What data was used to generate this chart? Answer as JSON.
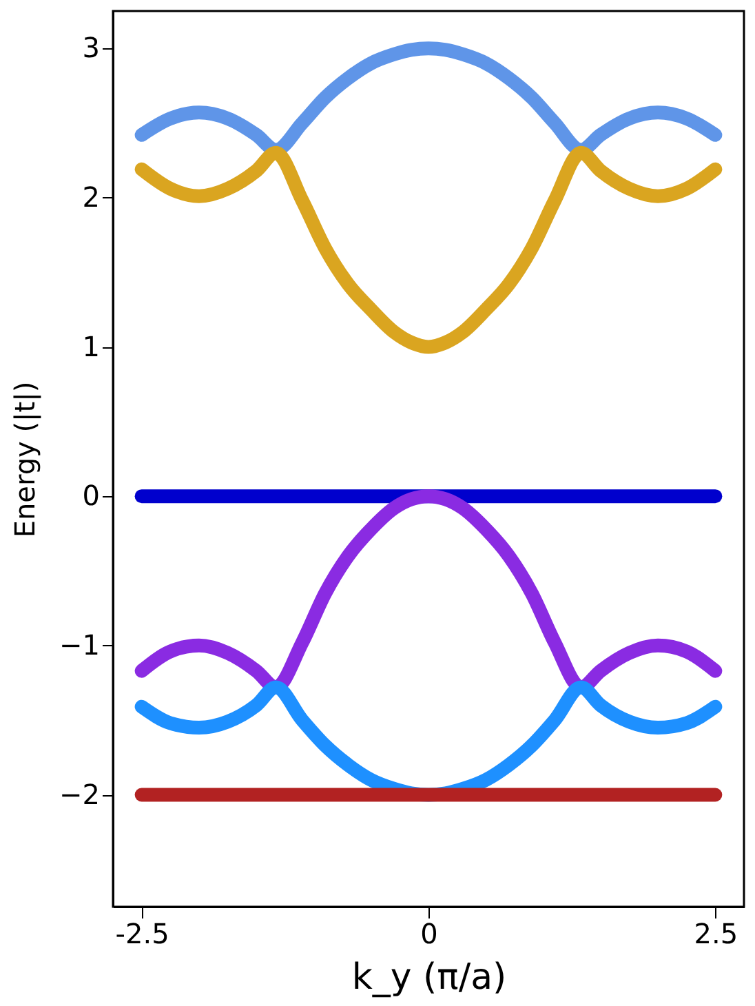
{
  "chart_data": {
    "type": "line",
    "xlabel": "k_y (π/a)",
    "ylabel": "Energy (|t|)",
    "xlim": [
      -2.75,
      2.75
    ],
    "ylim": [
      -2.75,
      3.25
    ],
    "xticks": [
      {
        "value": -2.5,
        "label": "-2.5"
      },
      0,
      {
        "value": 2.5,
        "label": "2.5"
      }
    ],
    "yticks": [
      -2,
      -1,
      0,
      1,
      2,
      3
    ],
    "grid": false,
    "legend": false,
    "marker": "none",
    "line_style": "solid",
    "x": [
      -2.5,
      -2.25,
      -2,
      -1.75,
      -1.5,
      -1.33,
      -1.1,
      -0.9,
      -0.7,
      -0.5,
      -0.3,
      -0.15,
      0,
      0.15,
      0.3,
      0.5,
      0.7,
      0.9,
      1.1,
      1.33,
      1.5,
      1.75,
      2,
      2.25,
      2.5
    ],
    "series": [
      {
        "color": "#5f95e8",
        "values": [
          2.42,
          2.53,
          2.57,
          2.53,
          2.42,
          2.32,
          2.5,
          2.67,
          2.8,
          2.9,
          2.96,
          2.99,
          3.0,
          2.99,
          2.96,
          2.9,
          2.8,
          2.67,
          2.5,
          2.32,
          2.42,
          2.53,
          2.57,
          2.53,
          2.42
        ]
      },
      {
        "color": "#daa520",
        "values": [
          2.19,
          2.06,
          2.01,
          2.06,
          2.18,
          2.3,
          1.98,
          1.66,
          1.42,
          1.25,
          1.1,
          1.03,
          1.0,
          1.03,
          1.1,
          1.25,
          1.42,
          1.66,
          1.98,
          2.3,
          2.18,
          2.06,
          2.01,
          2.06,
          2.19
        ]
      },
      {
        "color": "#0000cd",
        "values": [
          0,
          0,
          0,
          0,
          0,
          0,
          0,
          0,
          0,
          0,
          0,
          0,
          0,
          0,
          0,
          0,
          0,
          0,
          0,
          0,
          0,
          0,
          0,
          0,
          0
        ]
      },
      {
        "color": "#8a2be2",
        "values": [
          -1.17,
          -1.04,
          -1.0,
          -1.05,
          -1.17,
          -1.28,
          -0.98,
          -0.65,
          -0.4,
          -0.22,
          -0.08,
          -0.02,
          0,
          -0.02,
          -0.08,
          -0.22,
          -0.4,
          -0.65,
          -0.98,
          -1.28,
          -1.17,
          -1.05,
          -1.0,
          -1.04,
          -1.17
        ]
      },
      {
        "color": "#1e90ff",
        "values": [
          -1.41,
          -1.52,
          -1.55,
          -1.51,
          -1.4,
          -1.28,
          -1.5,
          -1.67,
          -1.8,
          -1.9,
          -1.96,
          -1.99,
          -2.0,
          -1.99,
          -1.96,
          -1.9,
          -1.8,
          -1.67,
          -1.5,
          -1.28,
          -1.4,
          -1.51,
          -1.55,
          -1.52,
          -1.41
        ]
      },
      {
        "color": "#b22222",
        "values": [
          -2,
          -2,
          -2,
          -2,
          -2,
          -2,
          -2,
          -2,
          -2,
          -2,
          -2,
          -2,
          -2,
          -2,
          -2,
          -2,
          -2,
          -2,
          -2,
          -2,
          -2,
          -2,
          -2,
          -2,
          -2
        ]
      }
    ]
  }
}
